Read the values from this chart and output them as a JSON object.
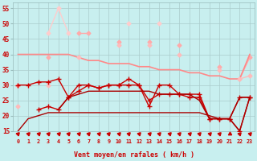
{
  "x": [
    0,
    1,
    2,
    3,
    4,
    5,
    6,
    7,
    8,
    9,
    10,
    11,
    12,
    13,
    14,
    15,
    16,
    17,
    18,
    19,
    20,
    21,
    22,
    23
  ],
  "line_lightest_zigzag": [
    null,
    null,
    null,
    47,
    55,
    47,
    null,
    null,
    null,
    null,
    null,
    50,
    null,
    null,
    50,
    null,
    null,
    null,
    null,
    null,
    null,
    null,
    null,
    null
  ],
  "line_light_zigzag": [
    null,
    null,
    null,
    39,
    null,
    null,
    47,
    47,
    null,
    null,
    44,
    null,
    null,
    44,
    null,
    null,
    43,
    null,
    null,
    null,
    null,
    null,
    null,
    null
  ],
  "line_light_connect": [
    30,
    null,
    null,
    null,
    null,
    null,
    null,
    null,
    null,
    null,
    null,
    null,
    null,
    null,
    null,
    null,
    null,
    null,
    null,
    null,
    36,
    null,
    32,
    39
  ],
  "line_med_upper": [
    40,
    40,
    40,
    40,
    40,
    40,
    39,
    38,
    38,
    37,
    37,
    37,
    36,
    36,
    35,
    35,
    35,
    34,
    34,
    33,
    33,
    32,
    32,
    40
  ],
  "line_med_lower": [
    23,
    null,
    null,
    30,
    null,
    null,
    39,
    null,
    null,
    null,
    43,
    null,
    null,
    43,
    null,
    null,
    40,
    null,
    null,
    null,
    35,
    null,
    32,
    33
  ],
  "line_dark1": [
    30,
    30,
    31,
    31,
    32,
    26,
    30,
    30,
    29,
    30,
    30,
    32,
    30,
    23,
    30,
    30,
    27,
    27,
    27,
    19,
    19,
    19,
    15,
    26
  ],
  "line_dark2": [
    null,
    null,
    22,
    23,
    22,
    26,
    28,
    30,
    29,
    30,
    30,
    30,
    30,
    25,
    27,
    27,
    27,
    26,
    26,
    19,
    19,
    19,
    26,
    26
  ],
  "line_dark3": [
    15,
    19,
    20,
    21,
    21,
    21,
    21,
    21,
    21,
    21,
    21,
    21,
    21,
    21,
    21,
    21,
    21,
    21,
    21,
    20,
    19,
    19,
    15,
    26
  ],
  "line_dark4": [
    null,
    null,
    22,
    null,
    22,
    26,
    27,
    28,
    28,
    28,
    28,
    28,
    28,
    28,
    27,
    27,
    27,
    27,
    25,
    19,
    19,
    19,
    26,
    26
  ],
  "xlabel": "Vent moyen/en rafales ( km/h )",
  "bg_color": "#c8efef",
  "grid_color": "#aacccc",
  "dark_red": "#cc0000",
  "med_red": "#dd5555",
  "light_pink1": "#ffaaaa",
  "light_pink2": "#ffcccc",
  "med_pink1": "#ff8888",
  "med_pink2": "#ffbbbb",
  "ylim": [
    15,
    57
  ],
  "yticks": [
    15,
    20,
    25,
    30,
    35,
    40,
    45,
    50,
    55
  ]
}
